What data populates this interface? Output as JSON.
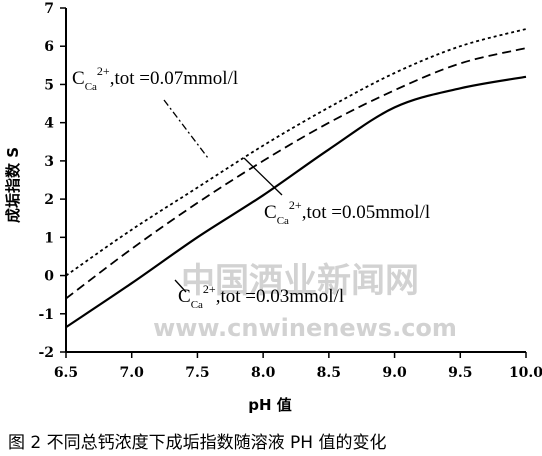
{
  "chart_data": {
    "type": "line",
    "xlabel": "pH 值",
    "ylabel": "成垢指数 S",
    "xlim": [
      6.5,
      10.0
    ],
    "ylim": [
      -2,
      7
    ],
    "xticks": [
      "6.5",
      "7.0",
      "7.5",
      "8.0",
      "8.5",
      "9.0",
      "9.5",
      "10.0"
    ],
    "yticks": [
      "-2",
      "-1",
      "0",
      "1",
      "2",
      "3",
      "4",
      "5",
      "6",
      "7"
    ],
    "grid": false,
    "series": [
      {
        "name": "0.07",
        "style": "dotted",
        "x": [
          6.5,
          7.0,
          7.5,
          8.0,
          8.5,
          9.0,
          9.5,
          10.0
        ],
        "y": [
          0.0,
          1.2,
          2.3,
          3.4,
          4.4,
          5.3,
          6.0,
          6.45
        ]
      },
      {
        "name": "0.05",
        "style": "dashed",
        "x": [
          6.5,
          7.0,
          7.5,
          8.0,
          8.5,
          9.0,
          9.5,
          10.0
        ],
        "y": [
          -0.6,
          0.7,
          1.9,
          3.0,
          4.0,
          4.85,
          5.55,
          5.95
        ]
      },
      {
        "name": "0.03",
        "style": "solid",
        "x": [
          6.5,
          7.0,
          7.5,
          8.0,
          8.5,
          9.0,
          9.5,
          10.0
        ],
        "y": [
          -1.35,
          -0.2,
          1.0,
          2.1,
          3.3,
          4.4,
          4.9,
          5.2
        ]
      }
    ],
    "annotations": [
      {
        "c": "C",
        "sub": "Ca",
        "sup": "2+",
        "text": ",tot =0.07mmol/l"
      },
      {
        "c": "C",
        "sub": "Ca",
        "sup": "2+",
        "text": ",tot =0.05mmol/l"
      },
      {
        "c": "C",
        "sub": "Ca",
        "sup": "2+",
        "text": ",tot =0.03mmol/l"
      }
    ],
    "watermark": {
      "cn": "中国酒业新闻网",
      "url": "www.cnwinenews.com"
    }
  },
  "caption": "图 2   不同总钙浓度下成垢指数随溶液 PH 值的变化",
  "colors": {
    "line": "#000000",
    "watermark": "#c8c8c8"
  }
}
